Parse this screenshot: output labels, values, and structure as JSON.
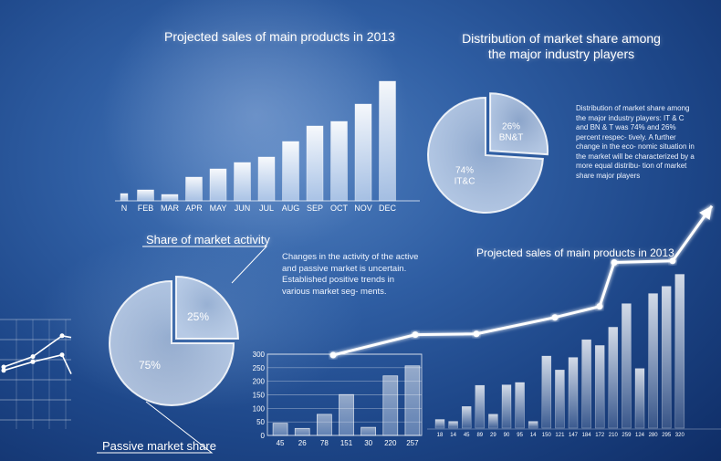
{
  "chart_data": [
    {
      "type": "bar",
      "title": "Projected sales of main products in 2013",
      "categories": [
        "N",
        "FEB",
        "MAR",
        "APR",
        "MAY",
        "JUN",
        "JUL",
        "AUG",
        "SEP",
        "OCT",
        "NOV",
        "DEC"
      ],
      "values": [
        8,
        12,
        7,
        26,
        35,
        42,
        48,
        65,
        82,
        87,
        106,
        131
      ],
      "ylim": [
        0,
        140
      ]
    },
    {
      "type": "pie",
      "title": "Distribution of market share among the major industry players",
      "description": "Distribution of market share among the major industry players: IT & C and BN & T was 74% and 26% percent respec- tively. A further change in the eco- nomic situation in the market will be characterized by a more equal distribu- tion of market share major players",
      "slices": [
        {
          "label": "BN&T",
          "pct_label": "26%",
          "value": 26
        },
        {
          "label": "IT&C",
          "pct_label": "74%",
          "value": 74
        }
      ]
    },
    {
      "type": "pie",
      "title": "Share of market activity",
      "description": "Changes in the activity of the active and passive market is uncertain. Established positive trends in various market seg- ments.",
      "slices": [
        {
          "label": "",
          "pct_label": "25%",
          "value": 25
        },
        {
          "label": "",
          "pct_label": "75%",
          "value": 75
        }
      ],
      "legend_bottom": "Passive market share"
    },
    {
      "type": "bar",
      "categories": [
        "45",
        "26",
        "78",
        "151",
        "30",
        "220",
        "257"
      ],
      "values": [
        45,
        26,
        78,
        151,
        30,
        220,
        257
      ],
      "yticks": [
        "300",
        "250",
        "200",
        "150",
        "100",
        "50",
        "0"
      ],
      "ylim": [
        0,
        300
      ]
    },
    {
      "type": "bar",
      "title": "Projected sales of main products in 2013",
      "categories": [
        "18",
        "14",
        "45",
        "89",
        "29",
        "90",
        "95",
        "14",
        "150",
        "121",
        "147",
        "184",
        "172",
        "210",
        "259",
        "124",
        "280",
        "295",
        "320"
      ],
      "values": [
        18,
        14,
        45,
        89,
        29,
        90,
        95,
        14,
        150,
        121,
        147,
        184,
        172,
        210,
        259,
        124,
        280,
        295,
        320
      ],
      "ylim": [
        0,
        340
      ]
    },
    {
      "type": "line",
      "series": [
        {
          "values": [
            1,
            2.3,
            2.35,
            3.4,
            4.1,
            6.9,
            7.0,
            10.5
          ]
        }
      ]
    },
    {
      "type": "line",
      "series": [
        {
          "values": [
            2.0,
            2.6,
            3.8,
            3.7
          ]
        },
        {
          "values": [
            1.8,
            2.3,
            2.7,
            1.6
          ]
        }
      ]
    }
  ]
}
